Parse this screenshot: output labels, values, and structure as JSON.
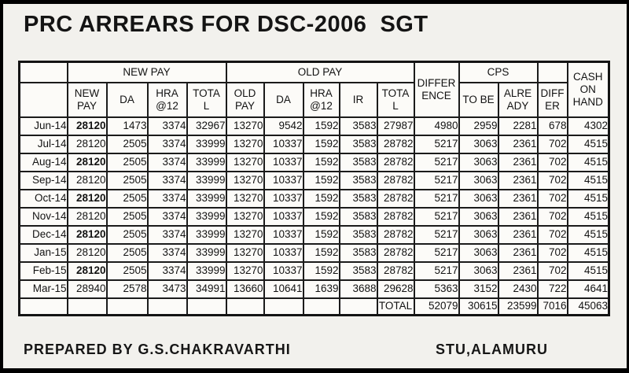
{
  "title": "PRC ARREARS FOR DSC-2006  SGT",
  "footer": {
    "left": "PREPARED BY G.S.CHAKRAVARTHI",
    "right": "STU,ALAMURU"
  },
  "colors": {
    "highlight_yellow": "#fffe00",
    "cell_white": "#fcfbf8",
    "page_background": "#f2f1ed",
    "border_black": "#1b1b1b"
  },
  "table": {
    "group_headers": {
      "new_pay": "NEW PAY",
      "old_pay": "OLD PAY",
      "difference": "DIFFER\nENCE",
      "cps": "CPS",
      "cash_on_hand": "CASH\nON\nHAND"
    },
    "col_headers": {
      "new_pay": "NEW\nPAY",
      "da_new": "DA",
      "hra_new": "HRA\n@12",
      "total_new": "TOTA\nL",
      "old_pay": "OLD\nPAY",
      "da_old": "DA",
      "hra_old": "HRA\n@12",
      "ir": "IR",
      "total_old": "TOTA\nL",
      "to_be": "TO BE",
      "already": "ALRE\nADY",
      "differ": "DIFF\nER"
    },
    "rows": [
      {
        "month": "Jun-14",
        "new_pay": "28120",
        "new_pay_bold": true,
        "da_new": "1473",
        "hra_new": "3374",
        "total_new": "32967",
        "old_pay": "13270",
        "da_old": "9542",
        "hra_old": "1592",
        "ir": "3583",
        "total_old": "27987",
        "difference": "4980",
        "to_be": "2959",
        "already": "2281",
        "differ": "678",
        "cash_on_hand": "4302"
      },
      {
        "month": "Jul-14",
        "new_pay": "28120",
        "new_pay_bold": false,
        "da_new": "2505",
        "hra_new": "3374",
        "total_new": "33999",
        "old_pay": "13270",
        "da_old": "10337",
        "hra_old": "1592",
        "ir": "3583",
        "total_old": "28782",
        "difference": "5217",
        "to_be": "3063",
        "already": "2361",
        "differ": "702",
        "cash_on_hand": "4515"
      },
      {
        "month": "Aug-14",
        "new_pay": "28120",
        "new_pay_bold": true,
        "da_new": "2505",
        "hra_new": "3374",
        "total_new": "33999",
        "old_pay": "13270",
        "da_old": "10337",
        "hra_old": "1592",
        "ir": "3583",
        "total_old": "28782",
        "difference": "5217",
        "to_be": "3063",
        "already": "2361",
        "differ": "702",
        "cash_on_hand": "4515"
      },
      {
        "month": "Sep-14",
        "new_pay": "28120",
        "new_pay_bold": false,
        "da_new": "2505",
        "hra_new": "3374",
        "total_new": "33999",
        "old_pay": "13270",
        "da_old": "10337",
        "hra_old": "1592",
        "ir": "3583",
        "total_old": "28782",
        "difference": "5217",
        "to_be": "3063",
        "already": "2361",
        "differ": "702",
        "cash_on_hand": "4515"
      },
      {
        "month": "Oct-14",
        "new_pay": "28120",
        "new_pay_bold": true,
        "da_new": "2505",
        "hra_new": "3374",
        "total_new": "33999",
        "old_pay": "13270",
        "da_old": "10337",
        "hra_old": "1592",
        "ir": "3583",
        "total_old": "28782",
        "difference": "5217",
        "to_be": "3063",
        "already": "2361",
        "differ": "702",
        "cash_on_hand": "4515"
      },
      {
        "month": "Nov-14",
        "new_pay": "28120",
        "new_pay_bold": false,
        "da_new": "2505",
        "hra_new": "3374",
        "total_new": "33999",
        "old_pay": "13270",
        "da_old": "10337",
        "hra_old": "1592",
        "ir": "3583",
        "total_old": "28782",
        "difference": "5217",
        "to_be": "3063",
        "already": "2361",
        "differ": "702",
        "cash_on_hand": "4515"
      },
      {
        "month": "Dec-14",
        "new_pay": "28120",
        "new_pay_bold": true,
        "da_new": "2505",
        "hra_new": "3374",
        "total_new": "33999",
        "old_pay": "13270",
        "da_old": "10337",
        "hra_old": "1592",
        "ir": "3583",
        "total_old": "28782",
        "difference": "5217",
        "to_be": "3063",
        "already": "2361",
        "differ": "702",
        "cash_on_hand": "4515"
      },
      {
        "month": "Jan-15",
        "new_pay": "28120",
        "new_pay_bold": false,
        "da_new": "2505",
        "hra_new": "3374",
        "total_new": "33999",
        "old_pay": "13270",
        "da_old": "10337",
        "hra_old": "1592",
        "ir": "3583",
        "total_old": "28782",
        "difference": "5217",
        "to_be": "3063",
        "already": "2361",
        "differ": "702",
        "cash_on_hand": "4515"
      },
      {
        "month": "Feb-15",
        "new_pay": "28120",
        "new_pay_bold": true,
        "da_new": "2505",
        "hra_new": "3374",
        "total_new": "33999",
        "old_pay": "13270",
        "da_old": "10337",
        "hra_old": "1592",
        "ir": "3583",
        "total_old": "28782",
        "difference": "5217",
        "to_be": "3063",
        "already": "2361",
        "differ": "702",
        "cash_on_hand": "4515"
      },
      {
        "month": "Mar-15",
        "new_pay": "28940",
        "new_pay_bold": false,
        "da_new": "2578",
        "hra_new": "3473",
        "total_new": "34991",
        "old_pay": "13660",
        "da_old": "10641",
        "hra_old": "1639",
        "ir": "3688",
        "total_old": "29628",
        "difference": "5363",
        "to_be": "3152",
        "already": "2430",
        "differ": "722",
        "cash_on_hand": "4641"
      }
    ],
    "total_row": {
      "label": "TOTAL",
      "difference": "52079",
      "to_be": "30615",
      "already": "23599",
      "differ": "7016",
      "cash_on_hand": "45063"
    }
  }
}
